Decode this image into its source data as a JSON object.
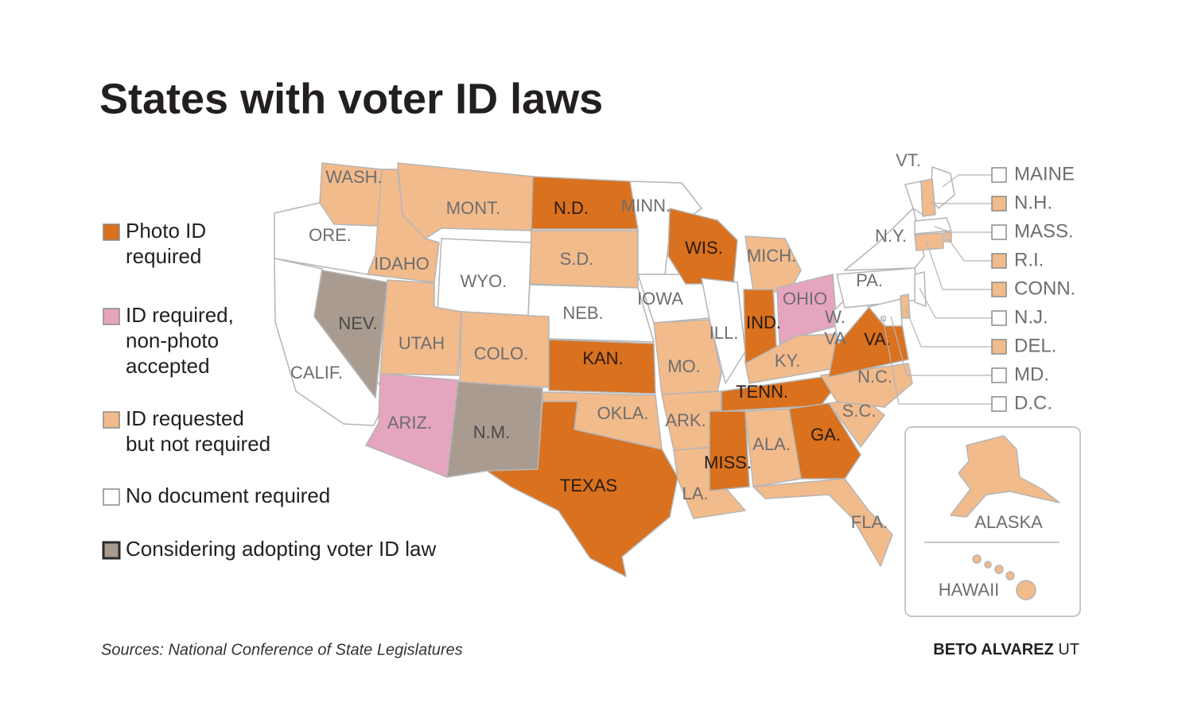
{
  "title": "States with voter ID laws",
  "legend": [
    {
      "label": [
        "Photo ID",
        "required"
      ],
      "color": "#d9711f",
      "text_color": "#2a1a10"
    },
    {
      "label": [
        "ID required,",
        "non-photo",
        "accepted"
      ],
      "color": "#e6a5bf",
      "text_color": "#6e6e6e"
    },
    {
      "label": [
        "ID requested",
        "but not required"
      ],
      "color": "#f2bb8c",
      "text_color": "#6e6e6e"
    },
    {
      "label": [
        "No document required"
      ],
      "color": "#ffffff",
      "text_color": "#6e6e6e"
    },
    {
      "label": [
        "Considering adopting voter ID law"
      ],
      "color": "#a99b90",
      "text_color": "#4a4a4a"
    }
  ],
  "states": [
    {
      "label": "WASH.",
      "category": 2
    },
    {
      "label": "ORE.",
      "category": 3
    },
    {
      "label": "CALIF.",
      "category": 3
    },
    {
      "label": "NEV.",
      "category": 4
    },
    {
      "label": "IDAHO",
      "category": 2
    },
    {
      "label": "MONT.",
      "category": 2
    },
    {
      "label": "WYO.",
      "category": 3
    },
    {
      "label": "UTAH",
      "category": 2
    },
    {
      "label": "COLO.",
      "category": 2
    },
    {
      "label": "ARIZ.",
      "category": 1
    },
    {
      "label": "N.M.",
      "category": 4
    },
    {
      "label": "N.D.",
      "category": 0
    },
    {
      "label": "S.D.",
      "category": 2
    },
    {
      "label": "NEB.",
      "category": 3
    },
    {
      "label": "KAN.",
      "category": 0
    },
    {
      "label": "OKLA.",
      "category": 2
    },
    {
      "label": "TEXAS",
      "category": 0
    },
    {
      "label": "MINN.",
      "category": 3
    },
    {
      "label": "IOWA",
      "category": 3
    },
    {
      "label": "MO.",
      "category": 2
    },
    {
      "label": "ARK.",
      "category": 2
    },
    {
      "label": "LA.",
      "category": 2
    },
    {
      "label": "WIS.",
      "category": 0
    },
    {
      "label": "ILL.",
      "category": 3
    },
    {
      "label": "MICH.",
      "category": 2
    },
    {
      "label": "IND.",
      "category": 0
    },
    {
      "label": "OHIO",
      "category": 1
    },
    {
      "label": "KY.",
      "category": 2
    },
    {
      "label": "TENN.",
      "category": 0
    },
    {
      "label": "MISS.",
      "category": 0
    },
    {
      "label": "ALA.",
      "category": 2
    },
    {
      "label": "GA.",
      "category": 0
    },
    {
      "label": "FLA.",
      "category": 2
    },
    {
      "label": "S.C.",
      "category": 2
    },
    {
      "label": "N.C.",
      "category": 2
    },
    {
      "label": "VA.",
      "category": 0
    },
    {
      "label": [
        "W.",
        "VA"
      ],
      "category": 3
    },
    {
      "label": "PA.",
      "category": 3
    },
    {
      "label": "N.Y.",
      "category": 3
    },
    {
      "label": "VT.",
      "category": 3
    }
  ],
  "small_states": [
    {
      "label": "MAINE",
      "category": 3
    },
    {
      "label": "N.H.",
      "category": 2
    },
    {
      "label": "MASS.",
      "category": 3
    },
    {
      "label": "R.I.",
      "category": 2
    },
    {
      "label": "CONN.",
      "category": 2
    },
    {
      "label": "N.J.",
      "category": 3
    },
    {
      "label": "DEL.",
      "category": 2
    },
    {
      "label": "MD.",
      "category": 3
    },
    {
      "label": "D.C.",
      "category": 3
    }
  ],
  "inset": {
    "alaska": {
      "label": "ALASKA",
      "category": 2
    },
    "hawaii": {
      "label": "HAWAII",
      "category": 2
    }
  },
  "source": "Sources: National Conference of State Legislatures",
  "credit": {
    "name": "BETO ALVAREZ",
    "agency": "UT"
  }
}
